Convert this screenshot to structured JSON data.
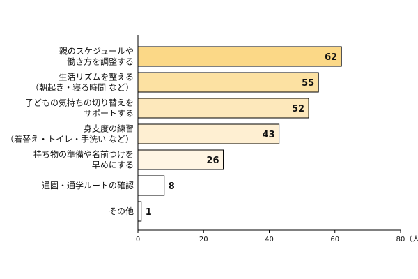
{
  "chart_data": {
    "type": "bar",
    "orientation": "horizontal",
    "categories": [
      [
        "親のスケジュールや",
        "働き方を調整する"
      ],
      [
        "生活リズムを整える",
        "（朝起き・寝る時間 など）"
      ],
      [
        "子どもの気持ちの切り替えを",
        "サポートする"
      ],
      [
        "身支度の練習",
        "（着替え・トイレ・手洗い など）"
      ],
      [
        "持ち物の準備や名前つけを",
        "早めにする"
      ],
      [
        "通園・通学ルートの確認"
      ],
      [
        "その他"
      ]
    ],
    "values": [
      62,
      55,
      52,
      43,
      26,
      8,
      1
    ],
    "bar_colors": [
      "#fbd887",
      "#fce1a2",
      "#fde8bb",
      "#feefd2",
      "#fff5e4",
      "#ffffff",
      "#ffffff"
    ],
    "xlim": [
      0,
      80
    ],
    "xticks": [
      0,
      20,
      40,
      60,
      80
    ],
    "x_unit": "（人）",
    "grid": false,
    "legend": "none",
    "title": "",
    "xlabel": "",
    "ylabel": ""
  }
}
